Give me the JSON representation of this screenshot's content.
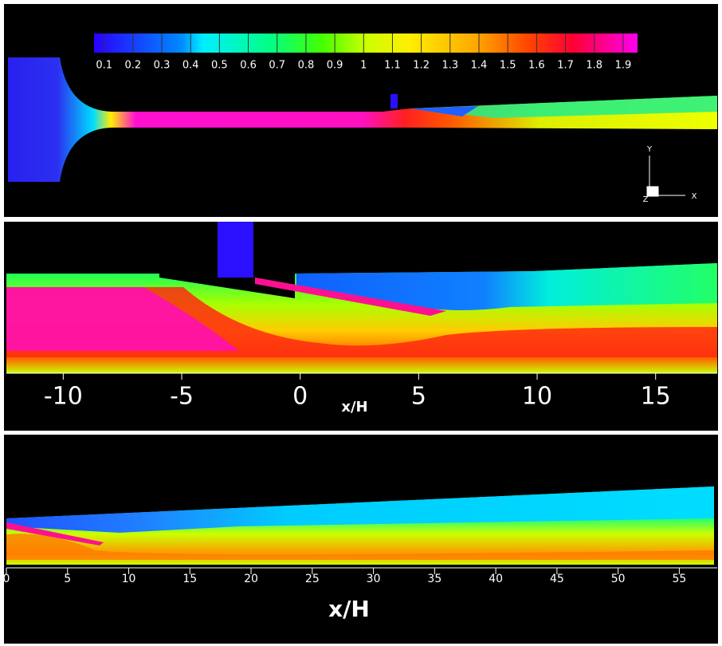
{
  "chart_data": [
    {
      "type": "colorbar",
      "clim": [
        0.065,
        1.95
      ],
      "ticks": [
        0.1,
        0.2,
        0.3,
        0.4,
        0.5,
        0.6,
        0.7,
        0.8,
        0.9,
        1,
        1.1,
        1.2,
        1.3,
        1.4,
        1.5,
        1.6,
        1.7,
        1.8,
        1.9
      ],
      "triad": {
        "y": "Y",
        "z": "Z",
        "x": "X"
      }
    },
    {
      "type": "contour",
      "xlim": [
        -12.4,
        17.6
      ],
      "xticks": [
        -10,
        -5,
        0,
        5,
        10,
        15
      ],
      "xlabel": "x/H"
    },
    {
      "type": "contour",
      "xlim": [
        0,
        58.1
      ],
      "xticks": [
        0,
        5,
        10,
        15,
        20,
        25,
        30,
        35,
        40,
        45,
        50,
        55
      ],
      "xlabel": "x/H"
    }
  ]
}
